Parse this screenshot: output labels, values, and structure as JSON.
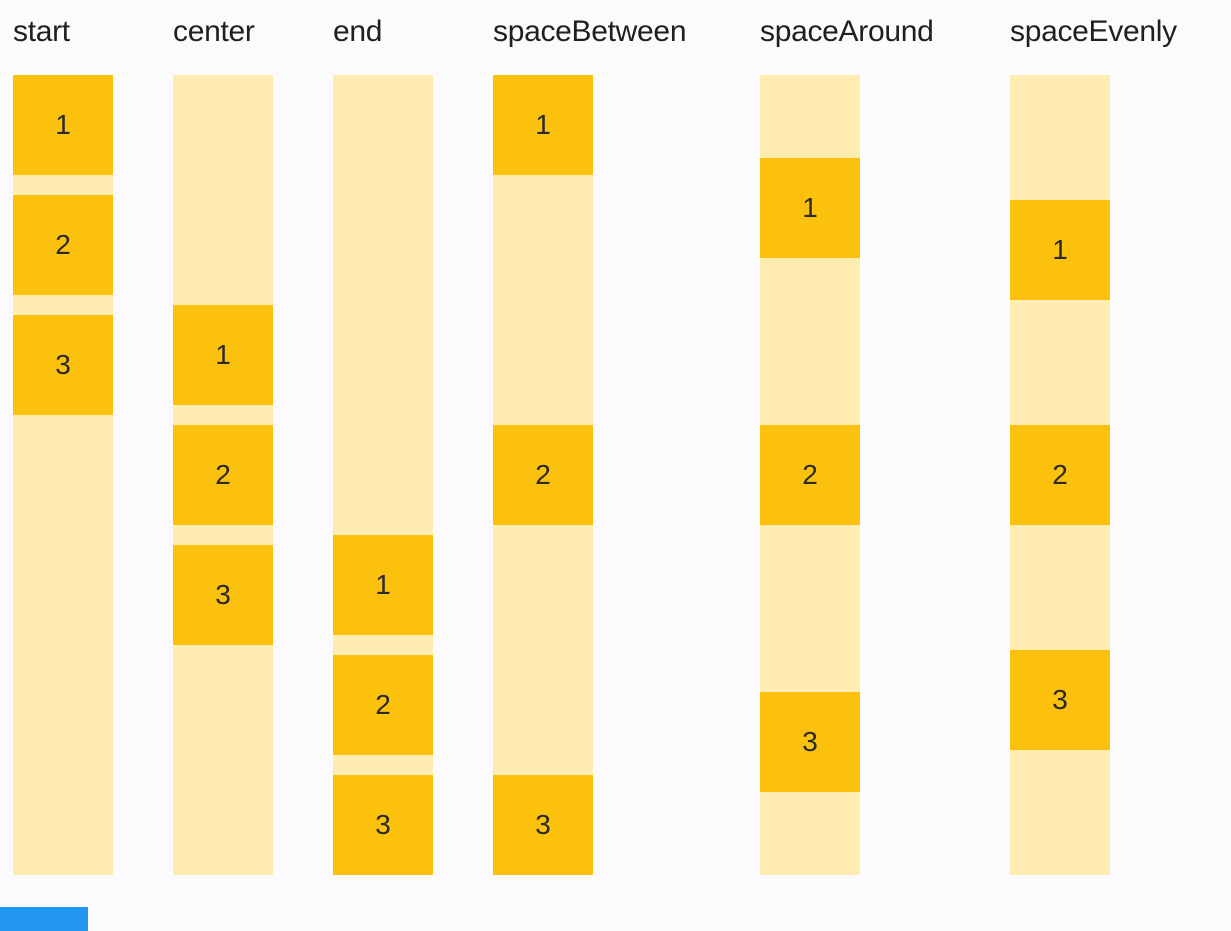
{
  "colors": {
    "background": "#FBFBFE",
    "container": "#FFECB3",
    "box": "#FCC10D",
    "box_number": "#2A2A2A",
    "heading": "#1F1F1F",
    "partial_blue_box": "#2196F3"
  },
  "columns": [
    {
      "label": "start",
      "justify": "start",
      "items": [
        "1",
        "2",
        "3"
      ]
    },
    {
      "label": "center",
      "justify": "center",
      "items": [
        "1",
        "2",
        "3"
      ]
    },
    {
      "label": "end",
      "justify": "end",
      "items": [
        "1",
        "2",
        "3"
      ]
    },
    {
      "label": "spaceBetween",
      "justify": "spaceBetween",
      "items": [
        "1",
        "2",
        "3"
      ]
    },
    {
      "label": "spaceAround",
      "justify": "spaceAround",
      "items": [
        "1",
        "2",
        "3"
      ]
    },
    {
      "label": "spaceEvenly",
      "justify": "spaceEvenly",
      "items": [
        "1",
        "2",
        "3"
      ]
    }
  ],
  "partial_element": {
    "note": "cropped blue box fragment at bottom-left"
  }
}
